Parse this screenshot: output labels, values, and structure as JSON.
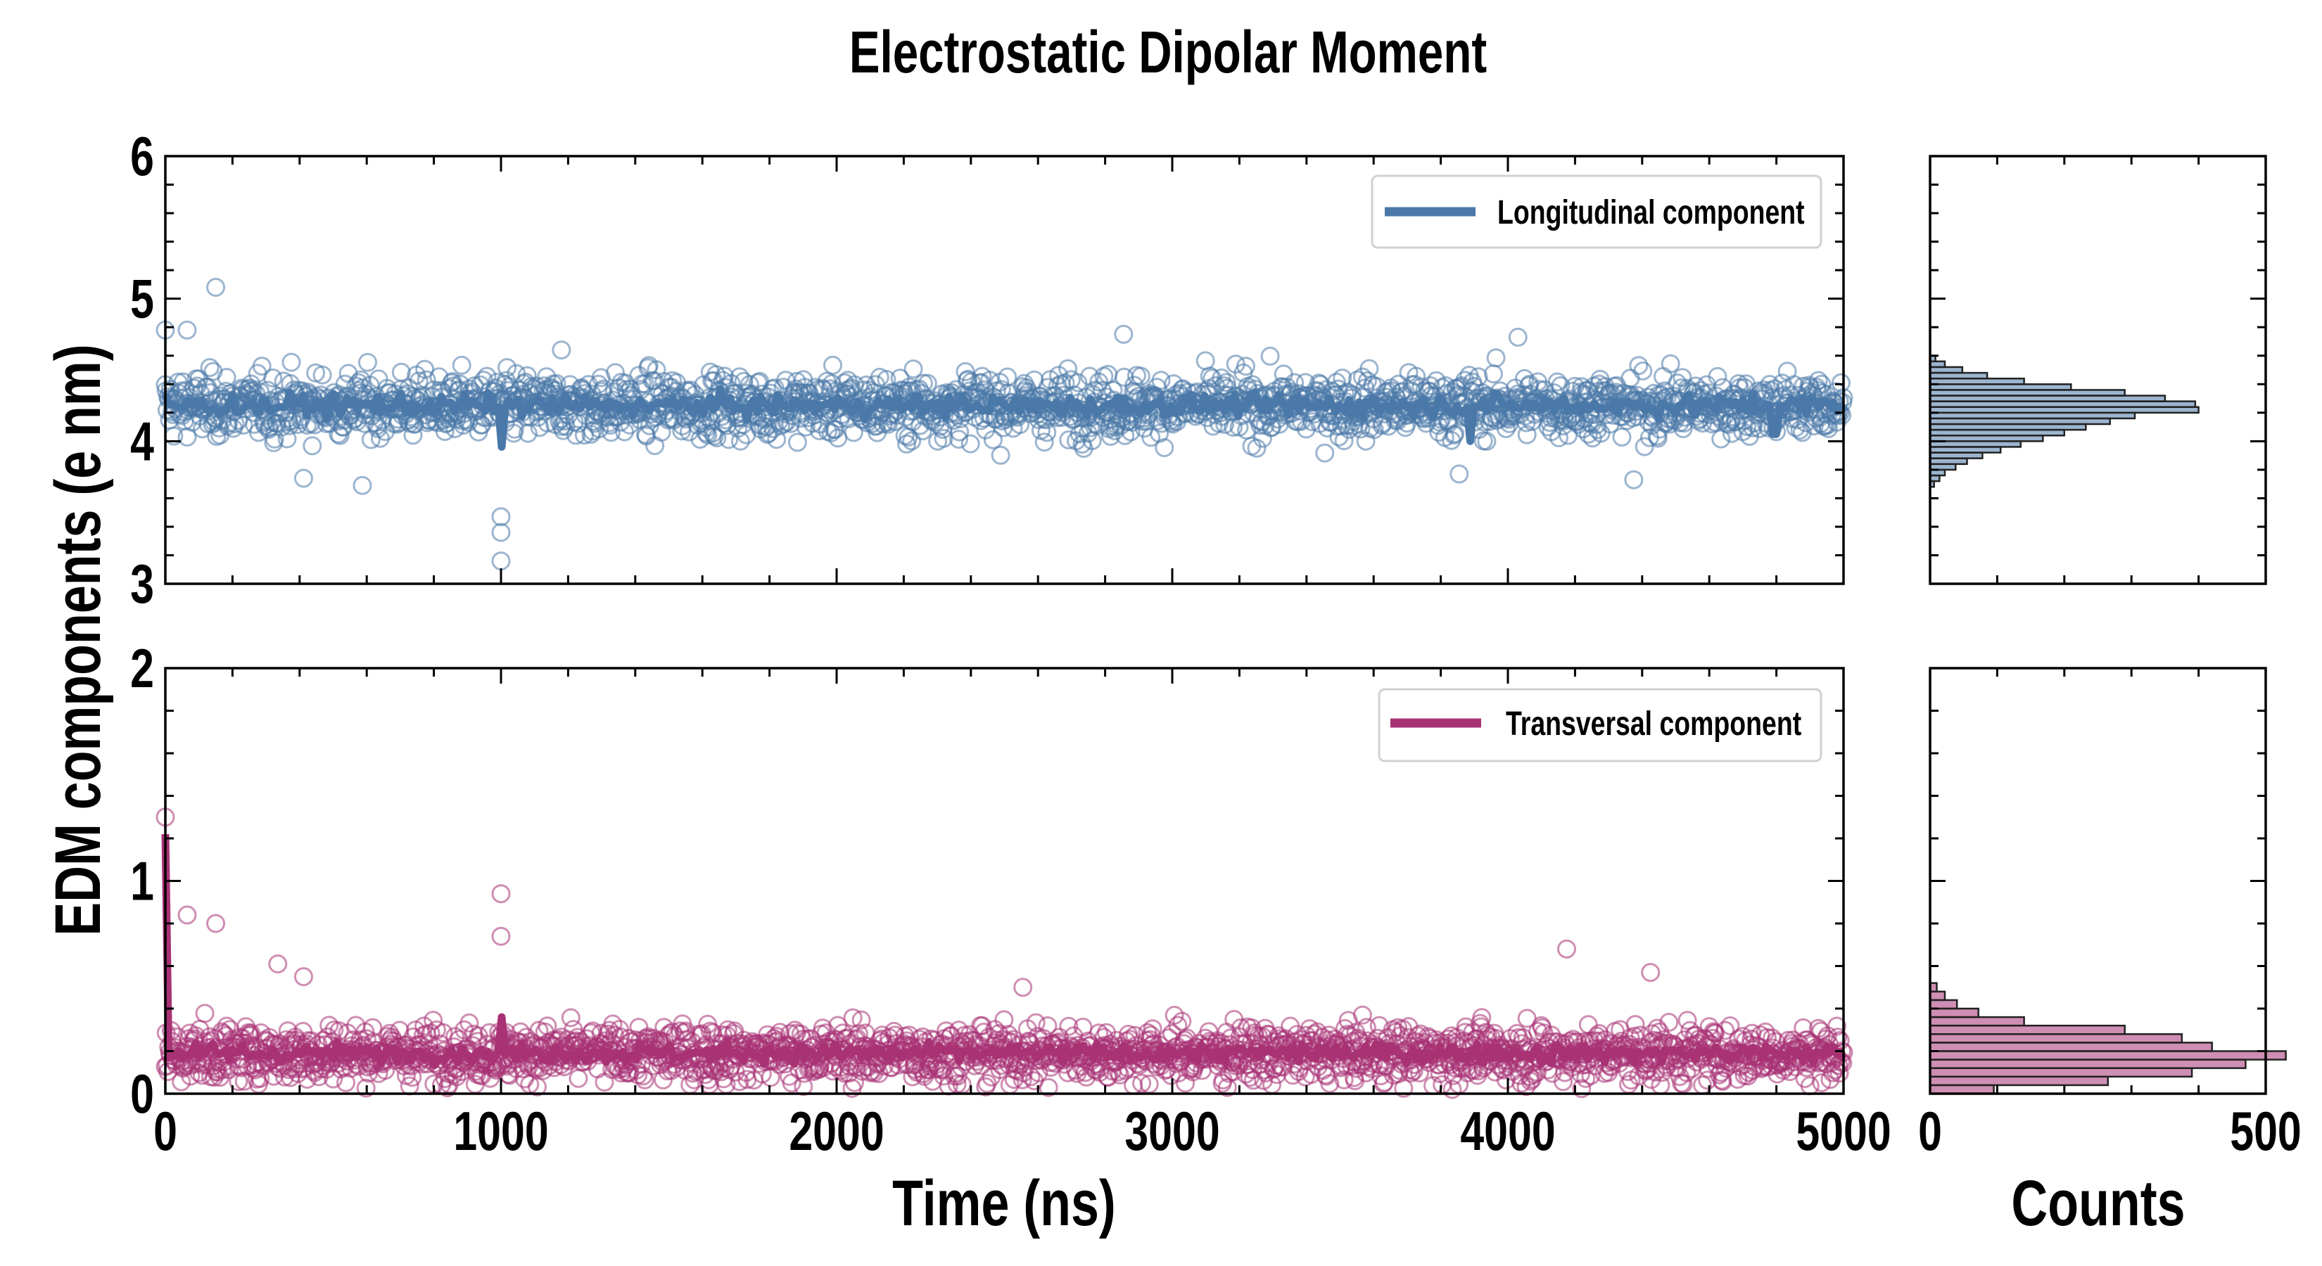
{
  "title": "Electrostatic Dipolar Moment",
  "colors": {
    "longitudinal": "#4a78a8",
    "transversal": "#a83274",
    "axis": "#000000"
  },
  "chart_data": [
    {
      "type": "scatter",
      "id": "top-timeseries",
      "xlim": [
        0,
        5000
      ],
      "ylim": [
        3,
        6
      ],
      "yticks": [
        "3",
        "4",
        "5",
        "6"
      ],
      "legend": {
        "label": "Longitudinal component",
        "placement": "top-right"
      },
      "baseline": 4.25,
      "noise": 0.2,
      "smooth_noise": 0.06,
      "points": [
        [
          0,
          4.78
        ],
        [
          65,
          4.78
        ],
        [
          150,
          5.08
        ],
        [
          412,
          3.74
        ],
        [
          587,
          3.69
        ],
        [
          1000,
          3.47
        ],
        [
          1000,
          3.36
        ],
        [
          1000,
          3.16
        ],
        [
          1180,
          4.64
        ],
        [
          2855,
          4.75
        ],
        [
          3855,
          3.77
        ],
        [
          4030,
          4.73
        ],
        [
          4375,
          3.73
        ]
      ],
      "line_dips": [
        [
          1000,
          3.96
        ],
        [
          3888,
          4.0
        ],
        [
          4795,
          4.05
        ]
      ]
    },
    {
      "type": "histogram",
      "id": "top-histogram",
      "xlim": [
        0,
        500
      ],
      "ylim": [
        3,
        6
      ],
      "orientation": "horizontal",
      "bins": [
        [
          3.68,
          3.72,
          6
        ],
        [
          3.72,
          3.76,
          14
        ],
        [
          3.76,
          3.8,
          22
        ],
        [
          3.8,
          3.84,
          38
        ],
        [
          3.84,
          3.88,
          55
        ],
        [
          3.88,
          3.92,
          78
        ],
        [
          3.92,
          3.96,
          105
        ],
        [
          3.96,
          4.0,
          135
        ],
        [
          4.0,
          4.04,
          168
        ],
        [
          4.04,
          4.08,
          200
        ],
        [
          4.08,
          4.12,
          232
        ],
        [
          4.12,
          4.16,
          268
        ],
        [
          4.16,
          4.2,
          305
        ],
        [
          4.2,
          4.24,
          400
        ],
        [
          4.24,
          4.28,
          395
        ],
        [
          4.28,
          4.32,
          350
        ],
        [
          4.32,
          4.36,
          290
        ],
        [
          4.36,
          4.4,
          210
        ],
        [
          4.4,
          4.44,
          140
        ],
        [
          4.44,
          4.48,
          85
        ],
        [
          4.48,
          4.52,
          48
        ],
        [
          4.52,
          4.56,
          22
        ],
        [
          4.56,
          4.6,
          8
        ]
      ]
    },
    {
      "type": "scatter",
      "id": "bottom-timeseries",
      "xlim": [
        0,
        5000
      ],
      "ylim": [
        0,
        2
      ],
      "yticks": [
        "0",
        "1",
        "2"
      ],
      "xticks": [
        "0",
        "1000",
        "2000",
        "3000",
        "4000",
        "5000"
      ],
      "xlabel": "Time (ns)",
      "ylabel": "EDM components (e nm)",
      "legend": {
        "label": "Transversal component",
        "placement": "top-right"
      },
      "baseline": 0.19,
      "noise": 0.12,
      "smooth_noise": 0.035,
      "points": [
        [
          0,
          1.3
        ],
        [
          65,
          0.84
        ],
        [
          150,
          0.8
        ],
        [
          335,
          0.61
        ],
        [
          412,
          0.55
        ],
        [
          1000,
          0.94
        ],
        [
          1000,
          0.74
        ],
        [
          2555,
          0.5
        ],
        [
          4175,
          0.68
        ],
        [
          4425,
          0.57
        ]
      ],
      "line_spikes": [
        [
          0,
          1.22
        ],
        [
          1000,
          0.36
        ]
      ]
    },
    {
      "type": "histogram",
      "id": "bottom-histogram",
      "xlim": [
        0,
        500
      ],
      "ylim": [
        0,
        2
      ],
      "orientation": "horizontal",
      "xticks": [
        "0",
        "500"
      ],
      "xlabel": "Counts",
      "bins": [
        [
          0.0,
          0.04,
          95
        ],
        [
          0.04,
          0.08,
          265
        ],
        [
          0.08,
          0.12,
          390
        ],
        [
          0.12,
          0.16,
          470
        ],
        [
          0.16,
          0.2,
          530
        ],
        [
          0.2,
          0.24,
          420
        ],
        [
          0.24,
          0.28,
          375
        ],
        [
          0.28,
          0.32,
          290
        ],
        [
          0.32,
          0.36,
          140
        ],
        [
          0.36,
          0.4,
          72
        ],
        [
          0.4,
          0.44,
          40
        ],
        [
          0.44,
          0.48,
          22
        ],
        [
          0.48,
          0.52,
          10
        ]
      ]
    }
  ]
}
